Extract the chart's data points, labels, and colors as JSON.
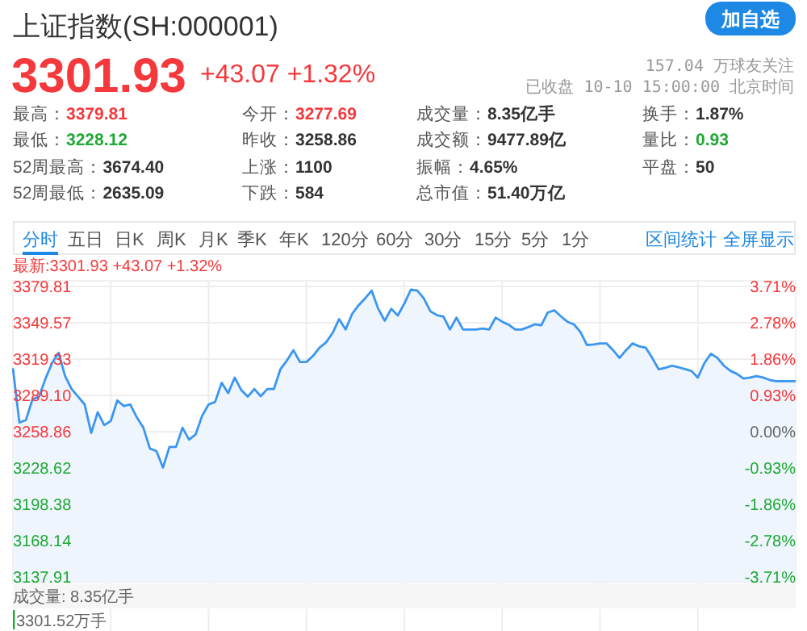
{
  "chart_data": {
    "type": "area",
    "title": "上证指数(SH:000001)",
    "color": "#3a96f0",
    "categories": [
      null,
      null,
      null,
      null,
      null,
      null,
      null,
      null,
      null,
      null,
      null,
      null,
      null,
      null,
      null,
      null,
      null,
      null,
      null,
      null,
      null,
      null,
      null,
      null,
      null,
      null,
      null,
      null,
      null,
      null,
      null,
      null,
      null,
      null,
      null,
      null,
      null,
      null,
      null,
      null,
      null,
      null,
      null,
      null,
      null,
      null,
      null,
      null,
      null,
      null,
      null,
      null,
      null,
      null,
      null,
      null,
      null,
      null,
      null,
      null,
      null,
      null,
      null,
      null,
      null,
      null,
      null,
      null,
      null,
      null,
      null,
      null,
      null,
      null,
      null,
      null,
      null,
      null,
      null,
      null,
      null,
      null,
      null,
      null,
      null,
      null,
      null,
      null,
      null,
      null,
      null,
      null,
      null,
      null,
      null,
      null,
      null,
      null,
      null,
      null,
      null,
      null,
      null,
      null,
      null,
      null,
      null,
      null,
      null,
      null,
      null,
      null,
      null,
      null,
      null,
      null,
      null,
      null,
      null,
      null,
      null
    ],
    "values": [
      3311.7,
      3266.4,
      3268.6,
      3285.8,
      3288.0,
      3303.1,
      3316.0,
      3324.6,
      3305.2,
      3294.4,
      3288.0,
      3281.5,
      3257.8,
      3275.0,
      3264.3,
      3267.7,
      3284.9,
      3280.2,
      3281.5,
      3270.7,
      3262.1,
      3244.8,
      3242.7,
      3228.9,
      3246.1,
      3246.1,
      3262.1,
      3252.2,
      3256.5,
      3272.0,
      3281.5,
      3283.6,
      3299.6,
      3291.0,
      3303.9,
      3293.6,
      3288.0,
      3294.4,
      3288.4,
      3294.4,
      3294.4,
      3310.8,
      3318.1,
      3326.8,
      3316.9,
      3316.9,
      3322.0,
      3328.9,
      3333.2,
      3341.0,
      3352.6,
      3344.0,
      3357.0,
      3364.3,
      3370.0,
      3376.4,
      3361.3,
      3351.3,
      3361.3,
      3355.7,
      3365.6,
      3377.2,
      3376.4,
      3369.9,
      3359.1,
      3356.0,
      3354.8,
      3344.0,
      3353.9,
      3344.0,
      3344.0,
      3344.0,
      3344.9,
      3344.0,
      3353.9,
      3350.5,
      3348.0,
      3344.0,
      3344.0,
      3346.0,
      3348.3,
      3347.5,
      3358.2,
      3360.0,
      3355.0,
      3350.5,
      3348.3,
      3342.0,
      3331.1,
      3331.5,
      3332.4,
      3332.4,
      3326.8,
      3320.3,
      3326.8,
      3332.4,
      3330.0,
      3328.9,
      3320.3,
      3310.8,
      3312.0,
      3313.8,
      3312.6,
      3311.0,
      3309.5,
      3303.9,
      3316.0,
      3323.8,
      3320.3,
      3313.8,
      3309.5,
      3307.0,
      3303.1,
      3304.0,
      3305.2,
      3304.0,
      3302.0,
      3300.9,
      3300.9,
      3300.9,
      3300.9
    ],
    "ylim": [
      3133.0,
      3384.6
    ],
    "yticks": [
      3379.81,
      3349.57,
      3319.33,
      {
        "value": 3289.1,
        "label": "3289.10"
      },
      3258.86,
      3228.62,
      3198.38,
      3168.14,
      3137.91
    ],
    "y2lim": [
      -3.86,
      3.86
    ],
    "y2ticks": [
      {
        "value": 3.71,
        "label": "3.71%"
      },
      {
        "value": 2.78,
        "label": "2.78%"
      },
      {
        "value": 1.86,
        "label": "1.86%"
      },
      {
        "value": 0.93,
        "label": "0.93%"
      },
      {
        "value": 0,
        "label": "0.00%"
      },
      {
        "value": -0.93,
        "label": "-0.93%"
      },
      {
        "value": -1.86,
        "label": "-1.86%"
      },
      {
        "value": -2.78,
        "label": "-2.78%"
      },
      {
        "value": -3.71,
        "label": "-3.71%"
      }
    ],
    "grid": true,
    "annotations": [
      "3301.93",
      "+43.07 +1.32%",
      "加自选",
      "157.04 万球友关注",
      "已收盘 10-10 15:00:00 北京时间",
      "最高：",
      "3379.81",
      "今开：",
      "3277.69",
      "成交量：",
      "8.35亿手",
      "换手：",
      "1.87%",
      "最低：",
      "3228.12",
      "昨收：",
      "3258.86",
      "成交额：",
      "9477.89亿",
      "量比：",
      "0.93",
      "52周最高：",
      "3674.40",
      "上涨：",
      "1100",
      "振幅：",
      "4.65%",
      "平盘：",
      "50",
      "52周最低：",
      "2635.09",
      "下跌：",
      "584",
      "总市值：",
      "51.40万亿",
      "分时",
      "五日",
      "日K",
      "周K",
      "月K",
      "季K",
      "年K",
      "120分",
      "60分",
      "30分",
      "15分",
      "5分",
      "1分",
      "区间统计",
      "全屏显示",
      "最新:3301.93 +43.07 +1.32%",
      "成交量: 8.35亿手",
      "3301.52万手"
    ]
  }
}
